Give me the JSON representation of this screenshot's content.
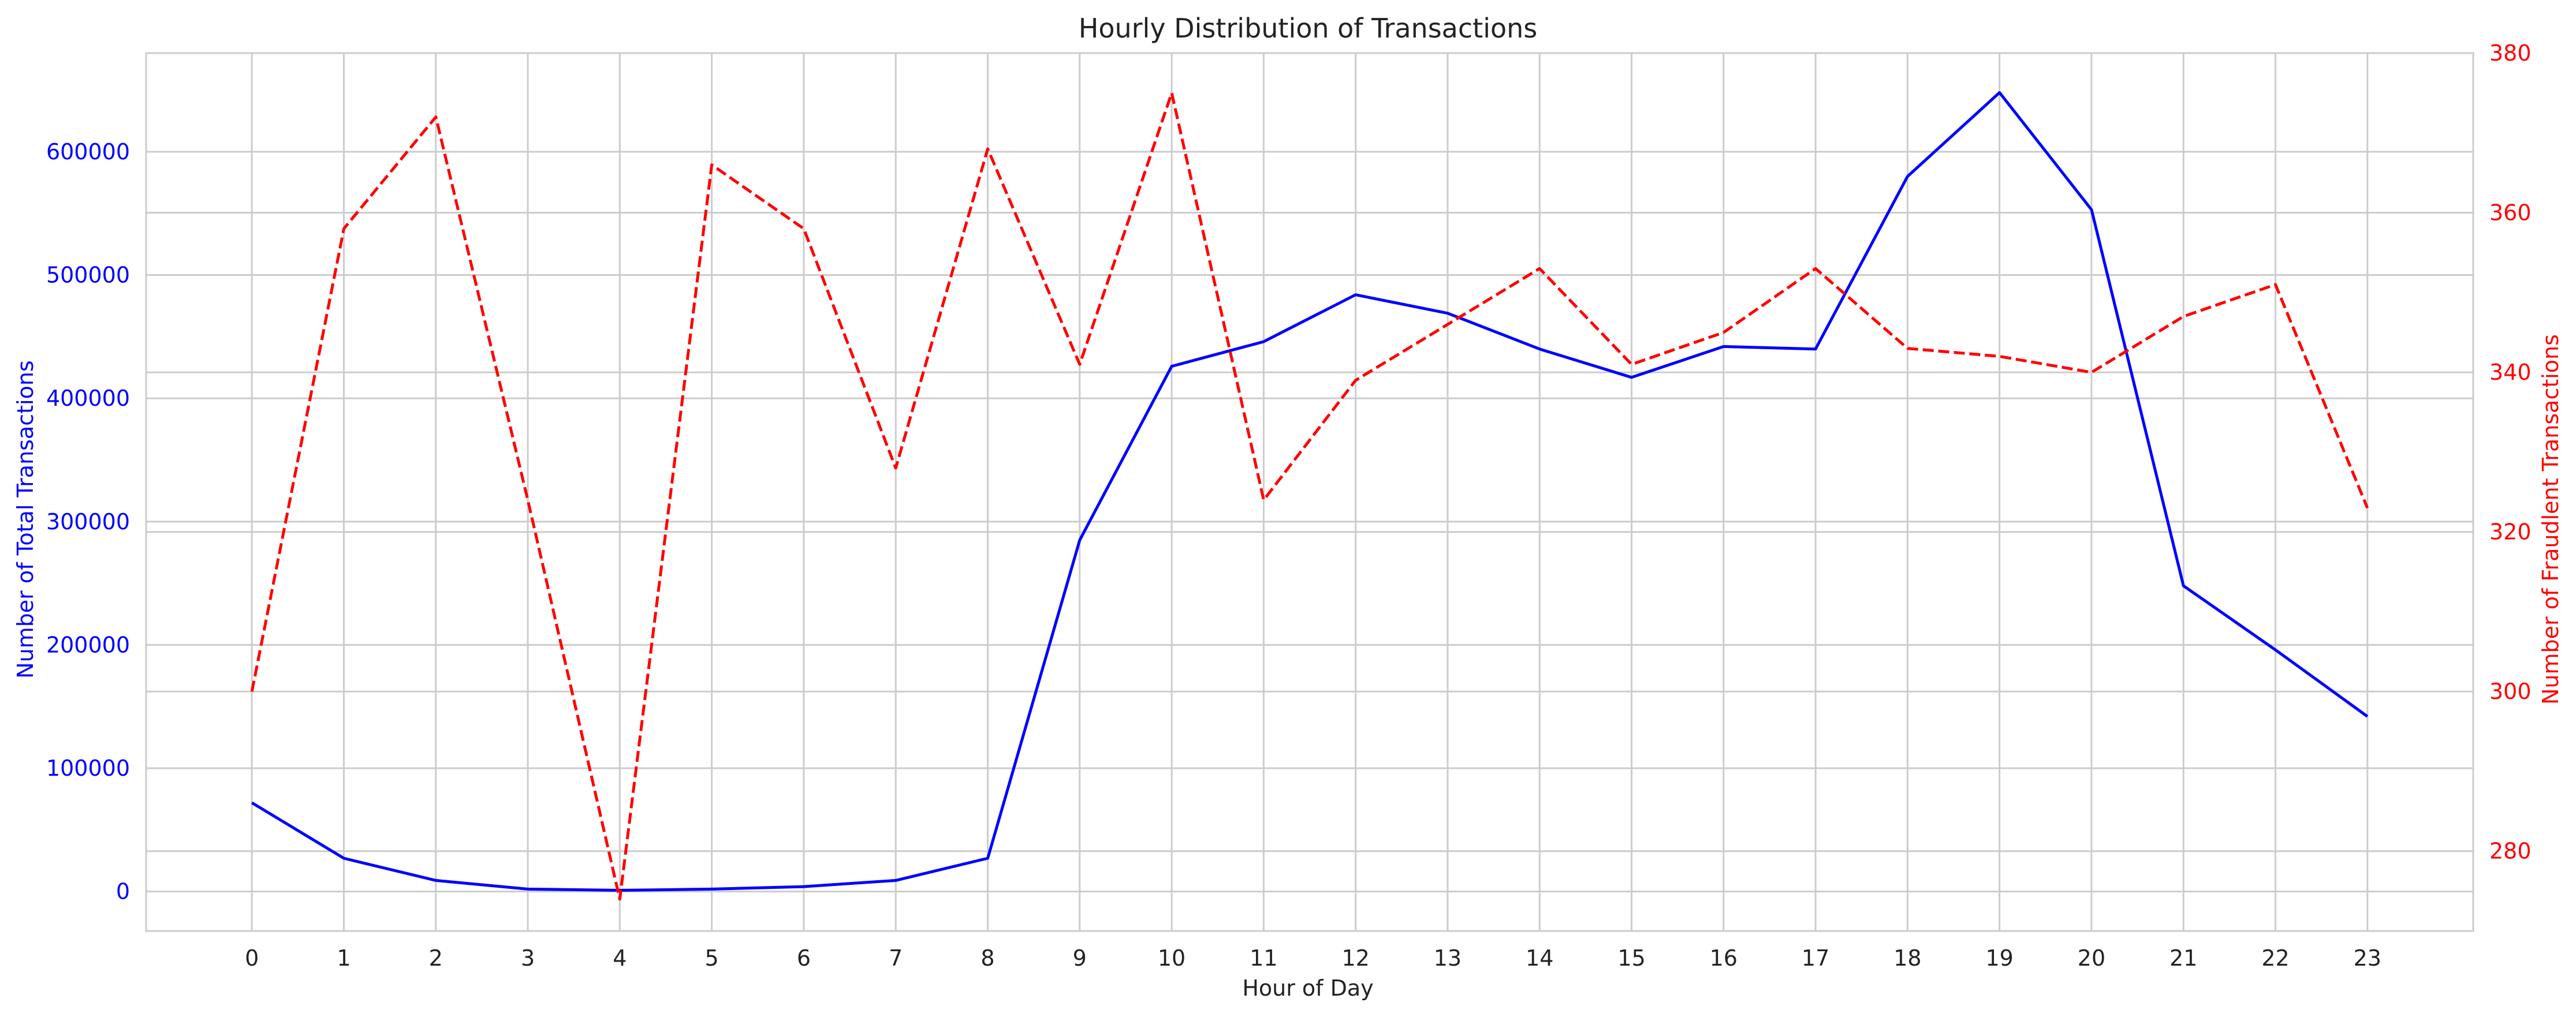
{
  "chart_data": {
    "type": "line",
    "title": "Hourly Distribution of Transactions",
    "xlabel": "Hour of Day",
    "ylabel_left": "Number of Total Transactions",
    "ylabel_right": "Number of Fraudlent Transactions",
    "x": [
      0,
      1,
      2,
      3,
      4,
      5,
      6,
      7,
      8,
      9,
      10,
      11,
      12,
      13,
      14,
      15,
      16,
      17,
      18,
      19,
      20,
      21,
      22,
      23
    ],
    "x_tick_labels": [
      "0",
      "1",
      "2",
      "3",
      "4",
      "5",
      "6",
      "7",
      "8",
      "9",
      "10",
      "11",
      "12",
      "13",
      "14",
      "15",
      "16",
      "17",
      "18",
      "19",
      "20",
      "21",
      "22",
      "23"
    ],
    "xlim": [
      -1.15,
      24.15
    ],
    "y_left": {
      "lim": [
        -32000,
        680000
      ],
      "ticks": [
        0,
        100000,
        200000,
        300000,
        400000,
        500000,
        600000
      ],
      "tick_labels": [
        "0",
        "100000",
        "200000",
        "300000",
        "400000",
        "500000",
        "600000"
      ],
      "color": "#0000ff"
    },
    "y_right": {
      "lim": [
        270,
        380
      ],
      "ticks": [
        280,
        300,
        320,
        340,
        360,
        380
      ],
      "tick_labels": [
        "280",
        "300",
        "320",
        "340",
        "360",
        "380"
      ],
      "color": "#ff0000"
    },
    "series": [
      {
        "axis": "left",
        "style": "solid",
        "color": "#0000ff",
        "values": [
          72000,
          27000,
          9000,
          2000,
          1000,
          2000,
          4000,
          9000,
          27000,
          285000,
          426000,
          446000,
          484000,
          469000,
          440000,
          417000,
          442000,
          440000,
          580000,
          648000,
          553000,
          248000,
          196000,
          142000
        ]
      },
      {
        "axis": "right",
        "style": "dashed",
        "color": "#ff0000",
        "values": [
          300,
          358,
          372,
          324,
          274,
          366,
          358,
          328,
          368,
          341,
          375,
          324,
          339,
          346,
          353,
          341,
          345,
          353,
          343,
          342,
          340,
          347,
          351,
          323
        ]
      }
    ],
    "grid": true,
    "grid_color": "#cccccc",
    "text_color": "#222222"
  }
}
